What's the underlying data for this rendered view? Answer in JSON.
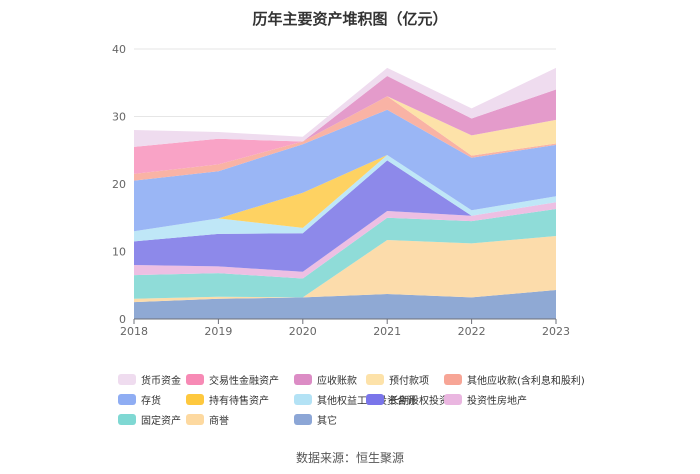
{
  "chart_data": {
    "type": "area",
    "stacked": true,
    "title": "历年主要资产堆积图（亿元）",
    "x": [
      "2018",
      "2019",
      "2020",
      "2021",
      "2022",
      "2023"
    ],
    "ylim": [
      0,
      40
    ],
    "yticks": [
      0,
      10,
      20,
      30,
      40
    ],
    "grid": "horizontal",
    "legend_position": "bottom",
    "series": [
      {
        "name": "其它",
        "color": "#8fa9d4",
        "values": [
          2.5,
          3.0,
          3.2,
          3.7,
          3.2,
          4.3
        ]
      },
      {
        "name": "商誉",
        "color": "#fcdcab",
        "values": [
          0.5,
          0.3,
          0.0,
          8.0,
          8.0,
          8.0
        ]
      },
      {
        "name": "固定资产",
        "color": "#8fdcd8",
        "values": [
          3.5,
          3.5,
          2.8,
          3.3,
          3.3,
          4.0
        ]
      },
      {
        "name": "投资性房地产",
        "color": "#edbfe3",
        "values": [
          1.5,
          1.0,
          1.0,
          1.0,
          0.8,
          1.0
        ]
      },
      {
        "name": "长期股权投资",
        "color": "#8d89ea",
        "values": [
          3.5,
          4.8,
          5.7,
          7.5,
          0.0,
          0.0
        ]
      },
      {
        "name": "其他权益工具投资合计",
        "color": "#bfe7f7",
        "values": [
          1.5,
          2.3,
          0.8,
          0.8,
          0.8,
          0.9
        ]
      },
      {
        "name": "持有待售资产",
        "color": "#fed262",
        "values": [
          0.0,
          0.0,
          5.2,
          0.0,
          0.0,
          0.0
        ]
      },
      {
        "name": "存货",
        "color": "#9ab6f5",
        "values": [
          7.5,
          7.0,
          7.2,
          6.7,
          7.8,
          7.6
        ]
      },
      {
        "name": "其他应收款(含利息和股利)",
        "color": "#f9b3a5",
        "values": [
          1.0,
          1.0,
          0.4,
          2.0,
          0.3,
          0.2
        ]
      },
      {
        "name": "预付款项",
        "color": "#fde2a9",
        "values": [
          0.0,
          0.0,
          0.0,
          0.0,
          3.0,
          3.5
        ]
      },
      {
        "name": "应收账款",
        "color": "#e49bcb",
        "values": [
          0.0,
          0.0,
          0.0,
          3.0,
          2.5,
          4.5
        ]
      },
      {
        "name": "交易性金融资产",
        "color": "#f9a3c6",
        "values": [
          4.0,
          3.8,
          0.0,
          0.0,
          0.0,
          0.0
        ]
      },
      {
        "name": "货币资金",
        "color": "#efdcef",
        "values": [
          2.5,
          1.0,
          0.7,
          1.2,
          1.5,
          3.2
        ]
      }
    ]
  },
  "legend_rows": [
    [
      {
        "label": "货币资金",
        "color": "#efdcef"
      },
      {
        "label": "交易性金融资产",
        "color": "#f78ab5"
      },
      {
        "label": "应收账款",
        "color": "#dc8cc5"
      },
      {
        "label": "预付款项",
        "color": "#fde2a9"
      },
      {
        "label": "其他应收款(含利息和股利)",
        "color": "#f7a596"
      }
    ],
    [
      {
        "label": "存货",
        "color": "#8fadf3"
      },
      {
        "label": "持有待售资产",
        "color": "#fec83e"
      },
      {
        "label": "其他权益工具投资合计",
        "color": "#b3e2f5"
      },
      {
        "label": "长期股权投资",
        "color": "#7a75ea"
      },
      {
        "label": "投资性房地产",
        "color": "#eab6e0"
      }
    ],
    [
      {
        "label": "固定资产",
        "color": "#7fd8d3"
      },
      {
        "label": "商誉",
        "color": "#fdd9a0"
      },
      {
        "label": "其它",
        "color": "#8ca6d6"
      }
    ]
  ],
  "source_text": "数据来源：恒生聚源"
}
